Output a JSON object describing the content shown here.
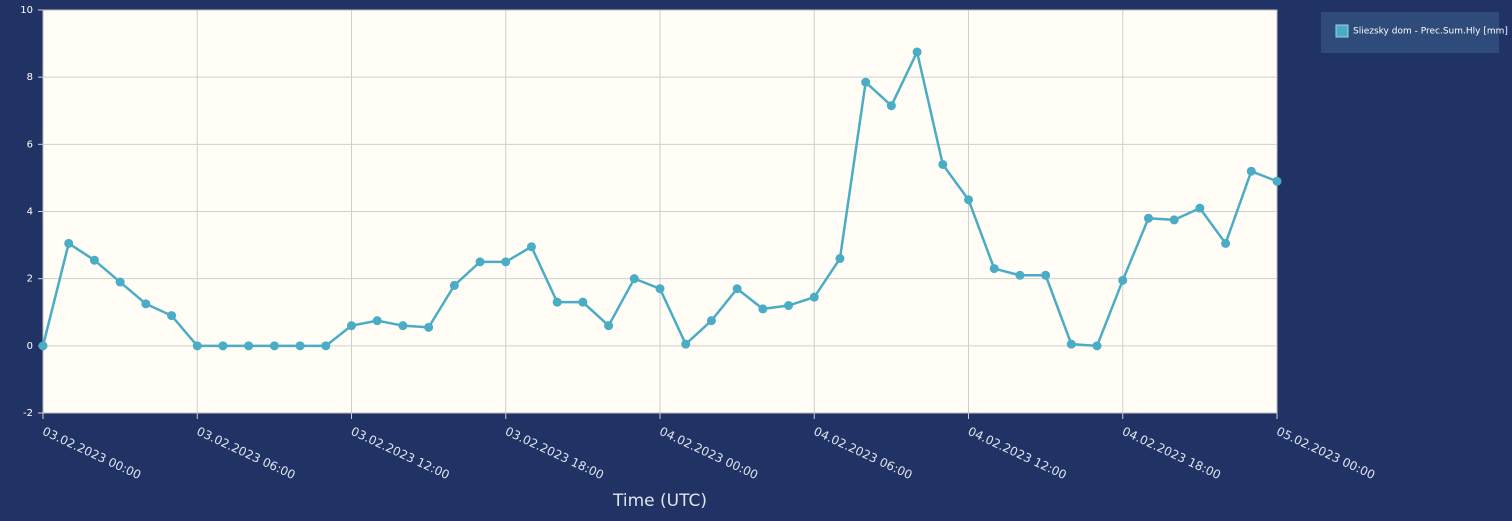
{
  "chart_data": {
    "type": "line",
    "x_label": "Time (UTC)",
    "x": [
      "03.02.2023 00:00",
      "03.02.2023 01:00",
      "03.02.2023 02:00",
      "03.02.2023 03:00",
      "03.02.2023 04:00",
      "03.02.2023 05:00",
      "03.02.2023 06:00",
      "03.02.2023 07:00",
      "03.02.2023 08:00",
      "03.02.2023 09:00",
      "03.02.2023 10:00",
      "03.02.2023 11:00",
      "03.02.2023 12:00",
      "03.02.2023 13:00",
      "03.02.2023 14:00",
      "03.02.2023 15:00",
      "03.02.2023 16:00",
      "03.02.2023 17:00",
      "03.02.2023 18:00",
      "03.02.2023 19:00",
      "03.02.2023 20:00",
      "03.02.2023 21:00",
      "03.02.2023 22:00",
      "03.02.2023 23:00",
      "04.02.2023 00:00",
      "04.02.2023 01:00",
      "04.02.2023 02:00",
      "04.02.2023 03:00",
      "04.02.2023 04:00",
      "04.02.2023 05:00",
      "04.02.2023 06:00",
      "04.02.2023 07:00",
      "04.02.2023 08:00",
      "04.02.2023 09:00",
      "04.02.2023 10:00",
      "04.02.2023 11:00",
      "04.02.2023 12:00",
      "04.02.2023 13:00",
      "04.02.2023 14:00",
      "04.02.2023 15:00",
      "04.02.2023 16:00",
      "04.02.2023 17:00",
      "04.02.2023 18:00",
      "04.02.2023 19:00",
      "04.02.2023 20:00",
      "04.02.2023 21:00",
      "04.02.2023 22:00",
      "04.02.2023 23:00",
      "05.02.2023 00:00"
    ],
    "series": [
      {
        "name": "Sliezsky dom - Prec.Sum.Hly [mm]",
        "color": "#4aacc5",
        "values": [
          0,
          3.05,
          2.55,
          1.9,
          1.25,
          0.9,
          0,
          0,
          0,
          0,
          0,
          0,
          0.6,
          0.75,
          0.6,
          0.55,
          1.8,
          2.5,
          2.5,
          2.95,
          1.3,
          1.3,
          0.6,
          2.0,
          1.7,
          0.05,
          0.75,
          1.7,
          1.1,
          1.2,
          1.45,
          2.6,
          7.85,
          7.15,
          8.75,
          5.4,
          4.35,
          2.3,
          2.1,
          2.1,
          0.05,
          0,
          1.95,
          3.8,
          3.75,
          4.1,
          3.05,
          5.2,
          4.9
        ]
      }
    ],
    "xlim": [
      "03.02.2023 00:00",
      "05.02.2023 00:00"
    ],
    "xticks": [
      "03.02.2023 00:00",
      "03.02.2023 06:00",
      "03.02.2023 12:00",
      "03.02.2023 18:00",
      "04.02.2023 00:00",
      "04.02.2023 06:00",
      "04.02.2023 12:00",
      "04.02.2023 18:00",
      "05.02.2023 00:00"
    ],
    "ylim": [
      -2,
      10
    ],
    "yticks": [
      -2,
      0,
      2,
      4,
      6,
      8,
      10
    ],
    "grid": true,
    "legend": "top-right"
  }
}
